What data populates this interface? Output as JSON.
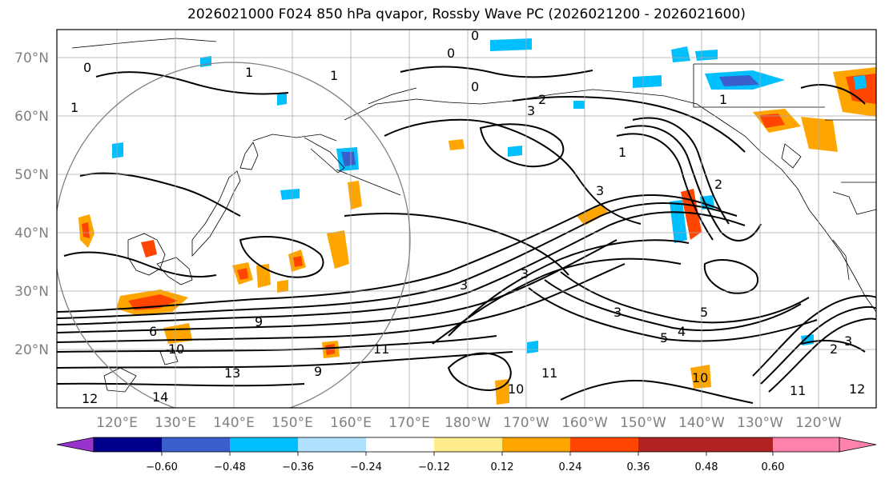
{
  "title": "2026021000 F024 850 hPa qvapor, Rossby Wave PC (2026021200 - 2026021600)",
  "lat_labels": [
    "70°N",
    "60°N",
    "50°N",
    "40°N",
    "30°N",
    "20°N"
  ],
  "lon_labels": [
    "120°E",
    "130°E",
    "140°E",
    "150°E",
    "160°E",
    "170°E",
    "180°W",
    "170°W",
    "160°W",
    "150°W",
    "140°W",
    "130°W",
    "120°W"
  ],
  "colorbar": {
    "colors": [
      "#9a32cd",
      "#00008b",
      "#3a5fcd",
      "#00bfff",
      "#b0e2ff",
      "#ffffff",
      "#ffec8b",
      "#ffa500",
      "#ff4500",
      "#b22222",
      "#ff82ab"
    ],
    "ticks": [
      "−0.60",
      "−0.48",
      "−0.36",
      "−0.24",
      "−0.12",
      "0.12",
      "0.24",
      "0.36",
      "0.48",
      "0.60"
    ]
  },
  "contour_labels": [
    "0",
    "0",
    "0",
    "0",
    "1",
    "1",
    "1",
    "2",
    "3",
    "1",
    "2",
    "3",
    "3",
    "3",
    "3",
    "5",
    "4",
    "5",
    "9",
    "6",
    "10",
    "11",
    "13",
    "12",
    "14",
    "9",
    "10",
    "11",
    "10",
    "11",
    "12",
    "2",
    "3",
    "1"
  ]
}
